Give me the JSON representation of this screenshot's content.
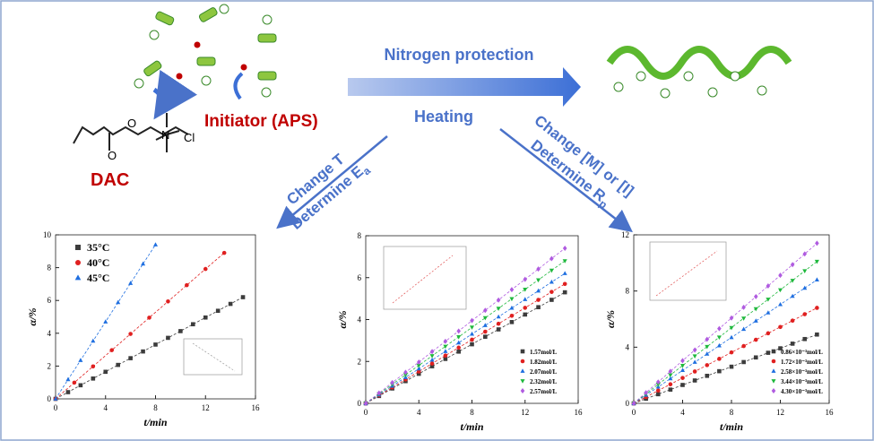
{
  "scheme": {
    "monomer": "DAC",
    "initiator": "Initiator (APS)",
    "arrow_top": "Nitrogen protection",
    "arrow_bottom": "Heating",
    "anion": "Cl",
    "oxygen": "O",
    "nitrogen": "N",
    "left_branch": {
      "line1": "Change T",
      "line2": "Determine E",
      "line2_sub": "a"
    },
    "right_branch": {
      "line1": "Change [M] or [I]",
      "line2": "Determine R",
      "line2_sub": "p"
    }
  },
  "chart_data": [
    {
      "type": "scatter",
      "xlabel": "t/min",
      "ylabel": "α/%",
      "xlim": [
        0,
        16
      ],
      "xticks": [
        0,
        4,
        8,
        12,
        16
      ],
      "ylim": [
        0,
        10
      ],
      "yticks": [
        0,
        2,
        4,
        6,
        8,
        10
      ],
      "legend": "upper left",
      "series": [
        {
          "name": "35°C",
          "color": "#3c3c3c",
          "marker": "square",
          "x": [
            0,
            1,
            2,
            3,
            4,
            5,
            6,
            7,
            8,
            9,
            10,
            11,
            12,
            13,
            14,
            15
          ],
          "values": [
            0,
            0.41,
            0.83,
            1.24,
            1.65,
            2.07,
            2.48,
            2.89,
            3.31,
            3.72,
            4.13,
            4.55,
            4.96,
            5.37,
            5.79,
            6.2
          ]
        },
        {
          "name": "40°C",
          "color": "#e02020",
          "marker": "circle",
          "x": [
            0,
            1.5,
            3,
            4.5,
            6,
            7.5,
            9,
            10.5,
            12,
            13.5
          ],
          "values": [
            0,
            0.99,
            1.98,
            2.97,
            3.96,
            4.95,
            5.94,
            6.93,
            7.92,
            8.9
          ]
        },
        {
          "name": "45°C",
          "color": "#1f6fe0",
          "marker": "triangle",
          "x": [
            0,
            1,
            2,
            3,
            4,
            5,
            6,
            7,
            8
          ],
          "values": [
            0,
            1.18,
            2.35,
            3.53,
            4.7,
            5.88,
            7.05,
            8.23,
            9.4
          ]
        }
      ]
    },
    {
      "type": "scatter",
      "xlabel": "t/min",
      "ylabel": "α/%",
      "xlim": [
        0,
        16
      ],
      "xticks": [
        0,
        4,
        8,
        12,
        16
      ],
      "ylim": [
        0,
        8
      ],
      "yticks": [
        0,
        2,
        4,
        6,
        8
      ],
      "legend": "lower right",
      "series": [
        {
          "name": "1.57mol/L",
          "color": "#3c3c3c",
          "marker": "square",
          "x": [
            0,
            1,
            2,
            3,
            4,
            5,
            6,
            7,
            8,
            9,
            10,
            11,
            12,
            13,
            14,
            15
          ],
          "values": [
            0,
            0.35,
            0.71,
            1.06,
            1.41,
            1.77,
            2.12,
            2.47,
            2.82,
            3.18,
            3.53,
            3.88,
            4.24,
            4.59,
            4.94,
            5.3
          ]
        },
        {
          "name": "1.82mol/L",
          "color": "#e02020",
          "marker": "circle",
          "x": [
            0,
            1,
            2,
            3,
            4,
            5,
            6,
            7,
            8,
            9,
            10,
            11,
            12,
            13,
            14,
            15
          ],
          "values": [
            0,
            0.38,
            0.76,
            1.14,
            1.52,
            1.9,
            2.28,
            2.66,
            3.04,
            3.42,
            3.8,
            4.18,
            4.56,
            4.94,
            5.32,
            5.7
          ]
        },
        {
          "name": "2.07mol/L",
          "color": "#1f6fe0",
          "marker": "triangle",
          "x": [
            0,
            1,
            2,
            3,
            4,
            5,
            6,
            7,
            8,
            9,
            10,
            11,
            12,
            13,
            14,
            15
          ],
          "values": [
            0,
            0.41,
            0.83,
            1.24,
            1.65,
            2.07,
            2.48,
            2.89,
            3.31,
            3.72,
            4.13,
            4.55,
            4.96,
            5.37,
            5.79,
            6.2
          ]
        },
        {
          "name": "2.32mol/L",
          "color": "#1eb83c",
          "marker": "down",
          "x": [
            0,
            1,
            2,
            3,
            4,
            5,
            6,
            7,
            8,
            9,
            10,
            11,
            12,
            13,
            14,
            15
          ],
          "values": [
            0,
            0.45,
            0.91,
            1.36,
            1.81,
            2.27,
            2.72,
            3.17,
            3.63,
            4.08,
            4.53,
            4.99,
            5.44,
            5.89,
            6.35,
            6.8
          ]
        },
        {
          "name": "2.57mol/L",
          "color": "#b05be0",
          "marker": "diamond",
          "x": [
            0,
            1,
            2,
            3,
            4,
            5,
            6,
            7,
            8,
            9,
            10,
            11,
            12,
            13,
            14,
            15
          ],
          "values": [
            0,
            0.49,
            0.99,
            1.48,
            1.97,
            2.47,
            2.96,
            3.45,
            3.95,
            4.44,
            4.93,
            5.43,
            5.92,
            6.41,
            6.91,
            7.4
          ]
        }
      ]
    },
    {
      "type": "scatter",
      "xlabel": "t/min",
      "ylabel": "α/%",
      "xlim": [
        0,
        16
      ],
      "xticks": [
        0,
        4,
        8,
        12,
        16
      ],
      "ylim": [
        0,
        12
      ],
      "yticks": [
        0,
        4,
        8,
        12
      ],
      "legend": "lower right",
      "series": [
        {
          "name": "0.86×10⁻³mol/L",
          "color": "#3c3c3c",
          "marker": "square",
          "x": [
            0,
            1,
            2,
            3,
            4,
            5,
            6,
            7,
            8,
            9,
            10,
            11,
            12,
            13,
            14,
            15
          ],
          "values": [
            0,
            0.33,
            0.65,
            0.98,
            1.31,
            1.63,
            1.96,
            2.29,
            2.61,
            2.94,
            3.27,
            3.6,
            3.92,
            4.25,
            4.58,
            4.9
          ]
        },
        {
          "name": "1.72×10⁻³mol/L",
          "color": "#e02020",
          "marker": "circle",
          "x": [
            0,
            1,
            2,
            3,
            4,
            5,
            6,
            7,
            8,
            9,
            10,
            11,
            12,
            13,
            14,
            15
          ],
          "values": [
            0,
            0.45,
            0.91,
            1.36,
            1.81,
            2.27,
            2.72,
            3.17,
            3.63,
            4.08,
            4.53,
            4.99,
            5.44,
            5.89,
            6.35,
            6.8
          ]
        },
        {
          "name": "2.58×10⁻³mol/L",
          "color": "#1f6fe0",
          "marker": "triangle",
          "x": [
            0,
            1,
            2,
            3,
            4,
            5,
            6,
            7,
            8,
            9,
            10,
            11,
            12,
            13,
            14,
            15
          ],
          "values": [
            0,
            0.59,
            1.17,
            1.76,
            2.35,
            2.93,
            3.52,
            4.11,
            4.69,
            5.28,
            5.87,
            6.45,
            7.04,
            7.63,
            8.21,
            8.8
          ]
        },
        {
          "name": "3.44×10⁻³mol/L",
          "color": "#1eb83c",
          "marker": "down",
          "x": [
            0,
            1,
            2,
            3,
            4,
            5,
            6,
            7,
            8,
            9,
            10,
            11,
            12,
            13,
            14,
            15
          ],
          "values": [
            0,
            0.67,
            1.35,
            2.02,
            2.69,
            3.37,
            4.04,
            4.71,
            5.39,
            6.06,
            6.73,
            7.41,
            8.08,
            8.75,
            9.43,
            10.1
          ]
        },
        {
          "name": "4.30×10⁻³mol/L",
          "color": "#b05be0",
          "marker": "diamond",
          "x": [
            0,
            1,
            2,
            3,
            4,
            5,
            6,
            7,
            8,
            9,
            10,
            11,
            12,
            13,
            14,
            15
          ],
          "values": [
            0,
            0.76,
            1.52,
            2.28,
            3.04,
            3.8,
            4.56,
            5.32,
            6.08,
            6.84,
            7.6,
            8.36,
            9.12,
            9.88,
            10.64,
            11.4
          ]
        }
      ]
    }
  ]
}
